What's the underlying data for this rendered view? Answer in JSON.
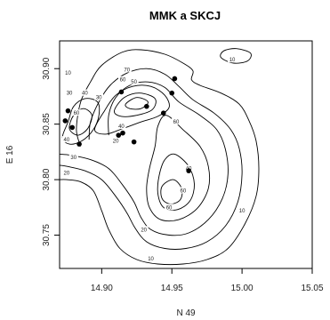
{
  "chart_data": {
    "type": "contour",
    "title": "MMK a SKCJ",
    "xlabel": "N 49",
    "ylabel": "E 16",
    "xlim": [
      14.87,
      15.05
    ],
    "ylim": [
      30.72,
      30.925
    ],
    "x_ticks": [
      {
        "value": 14.9,
        "label": "14.90"
      },
      {
        "value": 14.95,
        "label": "14.95"
      },
      {
        "value": 15.0,
        "label": "15.00"
      },
      {
        "value": 15.05,
        "label": "15.05"
      }
    ],
    "y_ticks": [
      {
        "value": 30.75,
        "label": "30.75"
      },
      {
        "value": 30.8,
        "label": "30.80"
      },
      {
        "value": 30.85,
        "label": "30.85"
      },
      {
        "value": 30.9,
        "label": "30.90"
      }
    ],
    "points": [
      {
        "x": 14.876,
        "y": 30.862
      },
      {
        "x": 14.874,
        "y": 30.853
      },
      {
        "x": 14.879,
        "y": 30.847
      },
      {
        "x": 14.884,
        "y": 30.832
      },
      {
        "x": 14.914,
        "y": 30.879
      },
      {
        "x": 14.932,
        "y": 30.866
      },
      {
        "x": 14.952,
        "y": 30.891
      },
      {
        "x": 14.95,
        "y": 30.878
      },
      {
        "x": 14.944,
        "y": 30.86
      },
      {
        "x": 14.912,
        "y": 30.84
      },
      {
        "x": 14.915,
        "y": 30.842
      },
      {
        "x": 14.923,
        "y": 30.834
      },
      {
        "x": 14.962,
        "y": 30.808
      }
    ],
    "contours": [
      {
        "level": 10,
        "points": [
          [
            14.885,
            30.83
          ],
          [
            14.882,
            30.845
          ],
          [
            14.885,
            30.87
          ],
          [
            14.892,
            30.888
          ],
          [
            14.9,
            30.903
          ],
          [
            14.915,
            30.915
          ],
          [
            14.928,
            30.917
          ],
          [
            14.945,
            30.913
          ],
          [
            14.958,
            30.905
          ],
          [
            14.965,
            30.898
          ],
          [
            14.964,
            30.89
          ],
          [
            14.97,
            30.885
          ],
          [
            14.985,
            30.878
          ],
          [
            14.998,
            30.868
          ],
          [
            15.005,
            30.853
          ],
          [
            15.01,
            30.835
          ],
          [
            15.012,
            30.81
          ],
          [
            15.01,
            30.785
          ],
          [
            15.002,
            30.76
          ],
          [
            14.99,
            30.738
          ],
          [
            14.975,
            30.728
          ],
          [
            14.958,
            30.724
          ],
          [
            14.94,
            30.724
          ],
          [
            14.925,
            30.728
          ],
          [
            14.913,
            30.738
          ],
          [
            14.905,
            30.755
          ],
          [
            14.9,
            30.772
          ],
          [
            14.894,
            30.79
          ],
          [
            14.885,
            30.798
          ],
          [
            14.875,
            30.8
          ],
          [
            14.87,
            30.8
          ]
        ],
        "closed": false
      },
      {
        "level": 20,
        "points": [
          [
            14.891,
            30.836
          ],
          [
            14.892,
            30.852
          ],
          [
            14.898,
            30.87
          ],
          [
            14.906,
            30.885
          ],
          [
            14.918,
            30.896
          ],
          [
            14.932,
            30.9
          ],
          [
            14.945,
            30.895
          ],
          [
            14.955,
            30.884
          ],
          [
            14.965,
            30.872
          ],
          [
            14.98,
            30.86
          ],
          [
            14.992,
            30.845
          ],
          [
            14.998,
            30.828
          ],
          [
            15.0,
            30.805
          ],
          [
            14.997,
            30.78
          ],
          [
            14.988,
            30.758
          ],
          [
            14.975,
            30.744
          ],
          [
            14.96,
            30.738
          ],
          [
            14.945,
            30.738
          ],
          [
            14.932,
            30.744
          ],
          [
            14.924,
            30.756
          ],
          [
            14.918,
            30.77
          ],
          [
            14.91,
            30.785
          ],
          [
            14.9,
            30.8
          ],
          [
            14.888,
            30.808
          ],
          [
            14.875,
            30.812
          ],
          [
            14.87,
            30.813
          ]
        ],
        "closed": false
      },
      {
        "level": 30,
        "points": [
          [
            14.905,
            30.84
          ],
          [
            14.905,
            30.858
          ],
          [
            14.91,
            30.874
          ],
          [
            14.92,
            30.885
          ],
          [
            14.933,
            30.888
          ],
          [
            14.945,
            30.883
          ],
          [
            14.955,
            30.87
          ],
          [
            14.97,
            30.858
          ],
          [
            14.982,
            30.845
          ],
          [
            14.988,
            30.828
          ],
          [
            14.99,
            30.805
          ],
          [
            14.986,
            30.783
          ],
          [
            14.976,
            30.764
          ],
          [
            14.962,
            30.752
          ],
          [
            14.948,
            30.75
          ],
          [
            14.935,
            30.755
          ],
          [
            14.928,
            30.766
          ],
          [
            14.923,
            30.78
          ],
          [
            14.915,
            30.795
          ],
          [
            14.905,
            30.81
          ],
          [
            14.892,
            30.818
          ],
          [
            14.878,
            30.822
          ],
          [
            14.87,
            30.823
          ]
        ],
        "closed": false
      },
      {
        "level": 40,
        "points": [
          [
            14.946,
            30.858
          ],
          [
            14.958,
            30.845
          ],
          [
            14.97,
            30.83
          ],
          [
            14.976,
            30.812
          ],
          [
            14.976,
            30.792
          ],
          [
            14.968,
            30.774
          ],
          [
            14.955,
            30.764
          ],
          [
            14.942,
            30.764
          ],
          [
            14.934,
            30.775
          ],
          [
            14.932,
            30.792
          ],
          [
            14.934,
            30.81
          ],
          [
            14.938,
            30.83
          ],
          [
            14.94,
            30.848
          ]
        ],
        "closed": true
      },
      {
        "level": 60,
        "points": [
          [
            14.952,
            30.823
          ],
          [
            14.962,
            30.812
          ],
          [
            14.966,
            30.796
          ],
          [
            14.963,
            30.781
          ],
          [
            14.954,
            30.773
          ],
          [
            14.944,
            30.775
          ],
          [
            14.94,
            30.788
          ],
          [
            14.941,
            30.804
          ],
          [
            14.945,
            30.818
          ]
        ],
        "closed": true
      },
      {
        "level": 80,
        "points": [
          [
            14.951,
            30.8
          ],
          [
            14.957,
            30.792
          ],
          [
            14.956,
            30.782
          ],
          [
            14.949,
            30.778
          ],
          [
            14.943,
            30.783
          ],
          [
            14.943,
            30.794
          ]
        ],
        "closed": true
      },
      {
        "level": 40,
        "points": [
          [
            14.895,
            30.845
          ],
          [
            14.902,
            30.862
          ],
          [
            14.91,
            30.876
          ],
          [
            14.922,
            30.884
          ],
          [
            14.935,
            30.884
          ],
          [
            14.945,
            30.876
          ],
          [
            14.948,
            30.865
          ],
          [
            14.94,
            30.857
          ],
          [
            14.928,
            30.852
          ],
          [
            14.915,
            30.846
          ],
          [
            14.903,
            30.841
          ]
        ],
        "closed": true
      },
      {
        "level": 60,
        "points": [
          [
            14.909,
            30.862
          ],
          [
            14.916,
            30.874
          ],
          [
            14.927,
            30.878
          ],
          [
            14.938,
            30.873
          ],
          [
            14.936,
            30.863
          ],
          [
            14.925,
            30.858
          ],
          [
            14.914,
            30.857
          ]
        ],
        "closed": true
      },
      {
        "level": 70,
        "points": [
          [
            14.917,
            30.868
          ],
          [
            14.925,
            30.874
          ],
          [
            14.933,
            30.87
          ],
          [
            14.928,
            30.864
          ],
          [
            14.92,
            30.864
          ]
        ],
        "closed": true
      },
      {
        "level": 40,
        "points": [
          [
            14.872,
            30.838
          ],
          [
            14.876,
            30.852
          ],
          [
            14.88,
            30.866
          ],
          [
            14.888,
            30.873
          ],
          [
            14.897,
            30.87
          ],
          [
            14.898,
            30.858
          ],
          [
            14.894,
            30.845
          ],
          [
            14.886,
            30.835
          ],
          [
            14.877,
            30.832
          ]
        ],
        "closed": true
      },
      {
        "level": 60,
        "points": [
          [
            14.877,
            30.846
          ],
          [
            14.88,
            30.858
          ],
          [
            14.887,
            30.864
          ],
          [
            14.893,
            30.858
          ],
          [
            14.89,
            30.846
          ],
          [
            14.883,
            30.84
          ]
        ],
        "closed": true
      },
      {
        "level": 10,
        "points": [
          [
            14.985,
            30.91
          ],
          [
            14.994,
            30.905
          ],
          [
            15.004,
            30.907
          ],
          [
            15.006,
            30.914
          ],
          [
            14.996,
            30.918
          ],
          [
            14.987,
            30.916
          ]
        ],
        "closed": true
      }
    ],
    "contour_labels": [
      {
        "x": 14.876,
        "y": 30.896,
        "text": "10"
      },
      {
        "x": 14.877,
        "y": 30.878,
        "text": "30"
      },
      {
        "x": 14.882,
        "y": 30.86,
        "text": "60"
      },
      {
        "x": 14.888,
        "y": 30.878,
        "text": "40"
      },
      {
        "x": 14.875,
        "y": 30.836,
        "text": "40"
      },
      {
        "x": 14.88,
        "y": 30.82,
        "text": "30"
      },
      {
        "x": 14.875,
        "y": 30.806,
        "text": "20"
      },
      {
        "x": 14.918,
        "y": 30.899,
        "text": "70"
      },
      {
        "x": 14.915,
        "y": 30.89,
        "text": "60"
      },
      {
        "x": 14.923,
        "y": 30.888,
        "text": "50"
      },
      {
        "x": 14.898,
        "y": 30.874,
        "text": "30"
      },
      {
        "x": 14.914,
        "y": 30.848,
        "text": "40"
      },
      {
        "x": 14.91,
        "y": 30.835,
        "text": "20"
      },
      {
        "x": 14.993,
        "y": 30.908,
        "text": "10"
      },
      {
        "x": 14.962,
        "y": 30.81,
        "text": "40"
      },
      {
        "x": 14.958,
        "y": 30.79,
        "text": "60"
      },
      {
        "x": 14.948,
        "y": 30.775,
        "text": "60"
      },
      {
        "x": 15.0,
        "y": 30.772,
        "text": "10"
      },
      {
        "x": 14.93,
        "y": 30.755,
        "text": "20"
      },
      {
        "x": 14.935,
        "y": 30.729,
        "text": "10"
      },
      {
        "x": 14.953,
        "y": 30.852,
        "text": "60"
      }
    ]
  },
  "colors": {
    "line": "#000000",
    "point": "#000000",
    "background": "#ffffff"
  }
}
